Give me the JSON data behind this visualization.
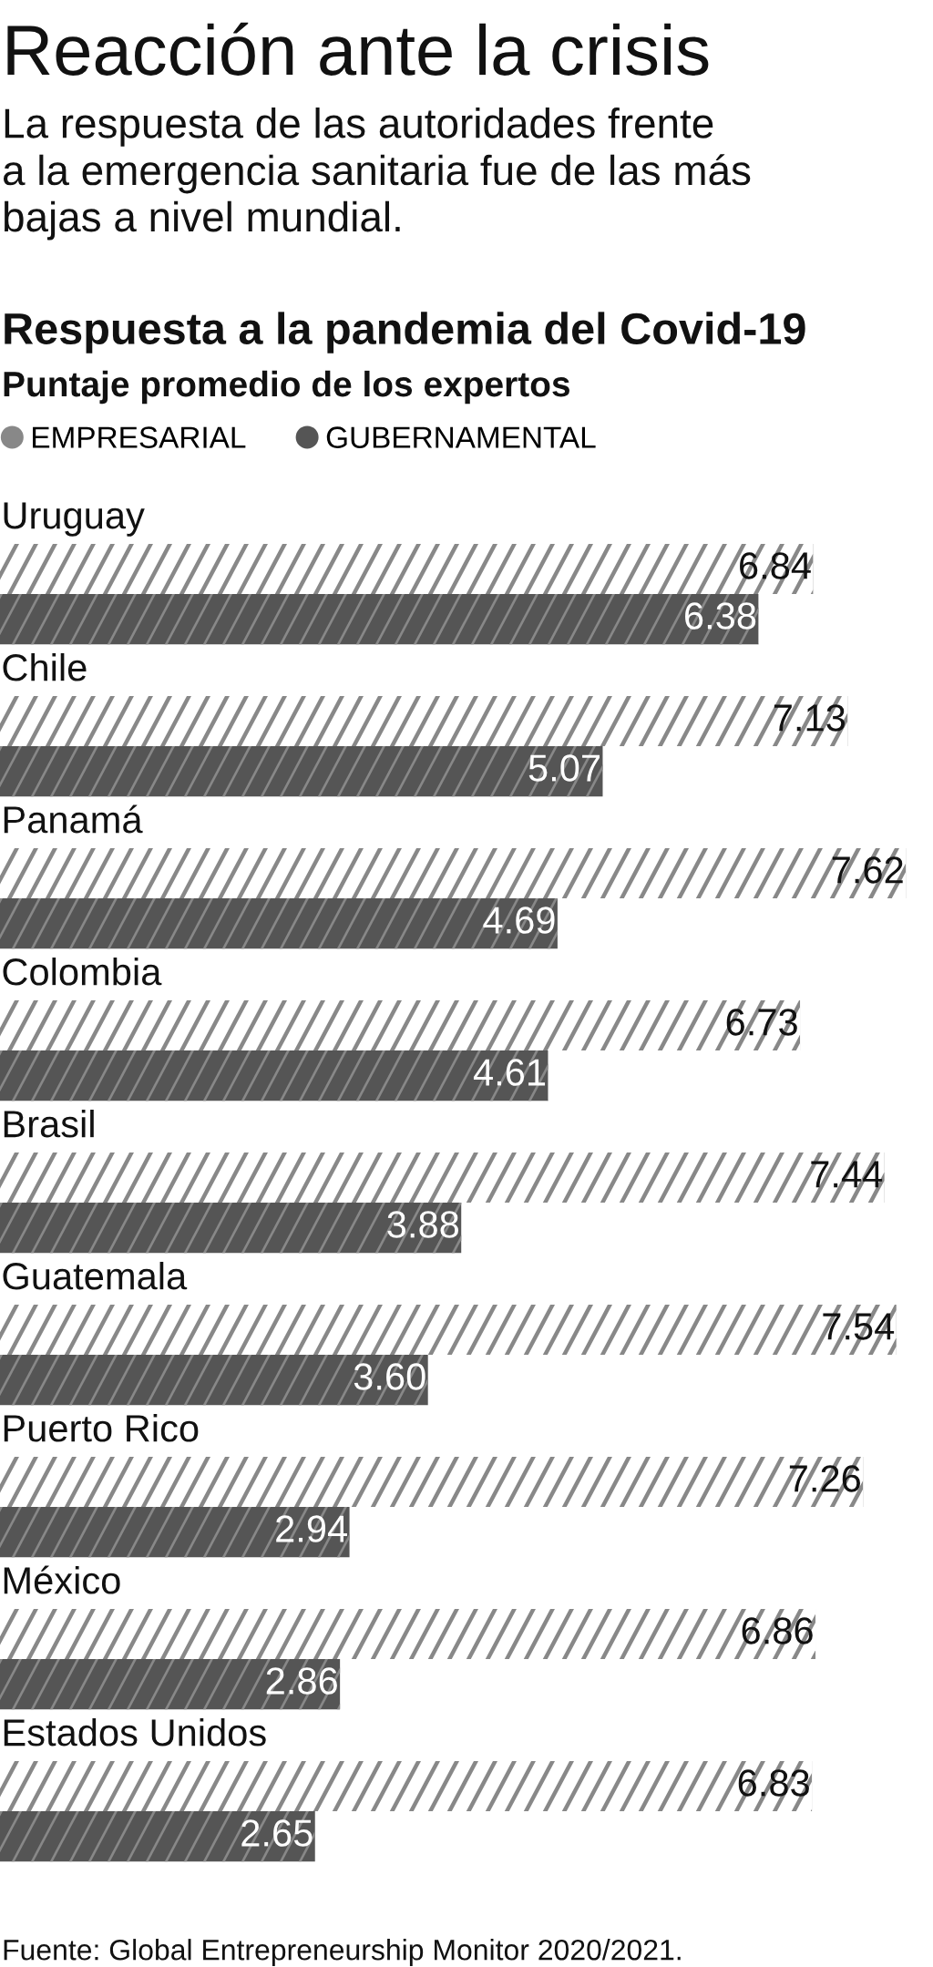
{
  "chart_data": {
    "type": "bar",
    "orientation": "horizontal",
    "title": "Reacción ante la crisis",
    "subtitle": "La respuesta de las autoridades frente\na la emergencia sanitaria fue de las más\nbajas a nivel mundial.",
    "annotations": [
      "Respuesta a la pandemia del Covid-19",
      "Puntaje promedio de los expertos",
      "Fuente: Global Entrepreneurship Monitor 2020/2021."
    ],
    "legend": "top left",
    "tick_labels": "y",
    "categories": [
      "Uruguay",
      "Chile",
      "Panamá",
      "Colombia",
      "Brasil",
      "Guatemala",
      "Puerto Rico",
      "México",
      "Estados Unidos"
    ],
    "series": [
      {
        "name": "EMPRESARIAL",
        "color": "#888888",
        "values": [
          6.84,
          7.13,
          7.62,
          6.73,
          7.44,
          7.54,
          7.26,
          6.86,
          6.83
        ],
        "value_labels": [
          "6.84",
          "7.13",
          "7.62",
          "6.73",
          "7.44",
          "7.54",
          "7.26",
          "6.86",
          "6.83"
        ]
      },
      {
        "name": "GUBERNAMENTAL",
        "color": "#555555",
        "values": [
          6.38,
          5.07,
          4.69,
          4.61,
          3.88,
          3.6,
          2.94,
          2.86,
          2.65
        ],
        "value_labels": [
          "6.38",
          "5.07",
          "4.69",
          "4.61",
          "3.88",
          "3.60",
          "2.94",
          "2.86",
          "2.65"
        ]
      }
    ]
  }
}
